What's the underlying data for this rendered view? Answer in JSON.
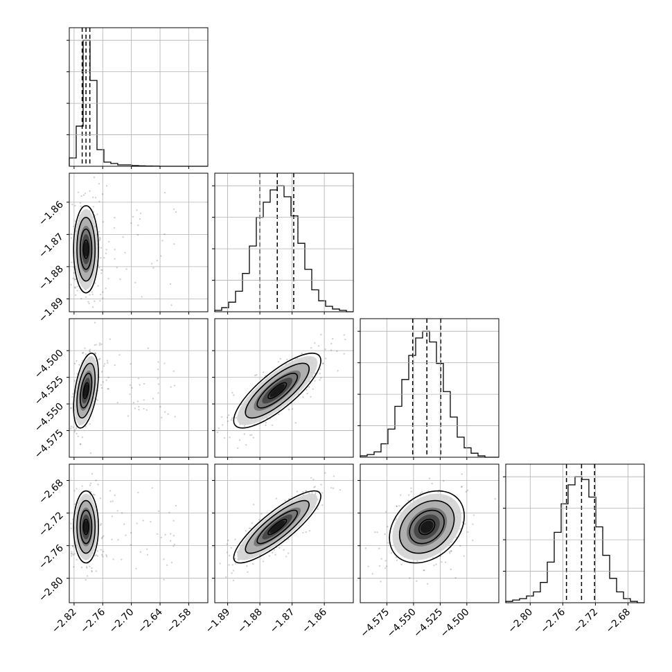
{
  "chart_data": {
    "type": "corner",
    "title": "",
    "grid": true,
    "parameters": [
      {
        "range": [
          -2.83,
          -2.54
        ],
        "ticks": [
          -2.82,
          -2.76,
          -2.7,
          -2.64,
          -2.58
        ],
        "tick_labels": [
          "−2.82",
          "−2.76",
          "−2.70",
          "−2.64",
          "−2.58"
        ]
      },
      {
        "range": [
          -1.894,
          -1.851
        ],
        "ticks": [
          -1.89,
          -1.88,
          -1.87,
          -1.86
        ],
        "tick_labels": [
          "−1.89",
          "−1.88",
          "−1.87",
          "−1.86"
        ]
      },
      {
        "range": [
          -4.6,
          -4.47
        ],
        "ticks": [
          -4.575,
          -4.55,
          -4.525,
          -4.5
        ],
        "tick_labels": [
          "−4.575",
          "−4.550",
          "−4.525",
          "−4.500"
        ]
      },
      {
        "range": [
          -2.83,
          -2.66
        ],
        "ticks": [
          -2.8,
          -2.76,
          -2.72,
          -2.68
        ],
        "tick_labels": [
          "−2.80",
          "−2.76",
          "−2.72",
          "−2.68"
        ]
      }
    ],
    "marginals": [
      {
        "quantiles": [
          -2.803,
          -2.795,
          -2.787
        ],
        "bin_edges": [
          -2.83,
          -2.8155,
          -2.801,
          -2.7865,
          -2.772,
          -2.7575,
          -2.743,
          -2.7285,
          -2.714,
          -2.6995,
          -2.685,
          -2.6705,
          -2.656,
          -2.6415,
          -2.627,
          -2.6125,
          -2.598,
          -2.5835,
          -2.569,
          -2.5545,
          -2.54
        ],
        "counts": [
          6,
          29,
          91,
          62,
          12,
          3,
          2,
          1,
          1,
          0.5,
          0.3,
          0.2,
          0.1,
          0,
          0,
          0,
          0,
          0,
          0,
          0
        ]
      },
      {
        "quantiles": [
          -1.88,
          -1.8746,
          -1.8695
        ],
        "bin_edges": [
          -1.894,
          -1.89185,
          -1.8897,
          -1.88755,
          -1.8854,
          -1.88325,
          -1.8811,
          -1.87895,
          -1.8768,
          -1.87465,
          -1.8725,
          -1.87035,
          -1.8682,
          -1.86605,
          -1.8639,
          -1.86175,
          -1.8596,
          -1.85745,
          -1.8553,
          -1.85315,
          -1.851
        ],
        "counts": [
          1,
          3,
          7,
          15,
          28,
          48,
          69,
          80,
          89,
          92,
          84,
          70,
          50,
          31,
          16,
          8,
          4,
          2,
          1,
          0
        ]
      },
      {
        "quantiles": [
          -4.5508,
          -4.5375,
          -4.5245
        ],
        "bin_edges": [
          -4.6,
          -4.5935,
          -4.587,
          -4.5805,
          -4.574,
          -4.5675,
          -4.561,
          -4.5545,
          -4.548,
          -4.5415,
          -4.535,
          -4.5285,
          -4.522,
          -4.5155,
          -4.509,
          -4.5025,
          -4.496,
          -4.4895,
          -4.483,
          -4.4765,
          -4.47
        ],
        "counts": [
          1,
          2,
          4,
          10,
          21,
          38,
          58,
          76,
          89,
          94,
          86,
          70,
          49,
          30,
          15,
          7,
          3,
          1,
          0,
          0
        ]
      },
      {
        "quantiles": [
          -2.7555,
          -2.737,
          -2.721
        ],
        "bin_edges": [
          -2.83,
          -2.8215,
          -2.813,
          -2.8045,
          -2.796,
          -2.7875,
          -2.779,
          -2.7705,
          -2.762,
          -2.7535,
          -2.745,
          -2.7365,
          -2.728,
          -2.7195,
          -2.711,
          -2.7025,
          -2.694,
          -2.6855,
          -2.677,
          -2.6685,
          -2.66
        ],
        "counts": [
          1,
          2,
          3,
          5,
          8,
          15,
          30,
          52,
          73,
          87,
          93,
          91,
          78,
          56,
          35,
          18,
          8,
          3,
          1,
          0
        ]
      }
    ],
    "pairs": [
      {
        "x": 0,
        "y": 1,
        "center": [
          -2.795,
          -1.8746
        ],
        "sigma": [
          0.01,
          0.0052
        ],
        "rho": 0.0
      },
      {
        "x": 0,
        "y": 2,
        "center": [
          -2.795,
          -4.5375
        ],
        "sigma": [
          0.01,
          0.0135
        ],
        "rho": 0.45
      },
      {
        "x": 1,
        "y": 2,
        "center": [
          -1.8746,
          -4.5375
        ],
        "sigma": [
          0.0052,
          0.0135
        ],
        "rho": 0.8
      },
      {
        "x": 0,
        "y": 3,
        "center": [
          -2.795,
          -2.737
        ],
        "sigma": [
          0.01,
          0.017
        ],
        "rho": 0.0
      },
      {
        "x": 1,
        "y": 3,
        "center": [
          -1.8746,
          -2.737
        ],
        "sigma": [
          0.0052,
          0.017
        ],
        "rho": 0.85
      },
      {
        "x": 2,
        "y": 3,
        "center": [
          -4.5375,
          -2.737
        ],
        "sigma": [
          0.0135,
          0.017
        ],
        "rho": 0.3
      }
    ]
  }
}
